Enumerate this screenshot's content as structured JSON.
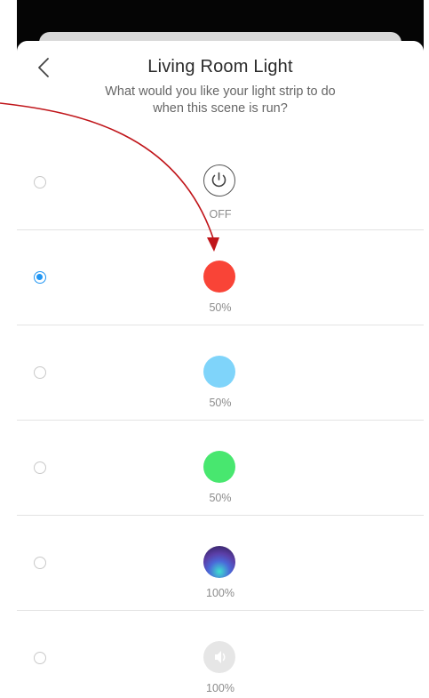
{
  "header": {
    "title": "Living Room Light",
    "subtitle": "What would you like your light strip to do when this scene is run?",
    "back_icon": "chevron-left-icon"
  },
  "options": [
    {
      "label": "OFF",
      "icon": "power-icon",
      "selected": false
    },
    {
      "label": "50%",
      "color": "#f94437",
      "selected": true
    },
    {
      "label": "50%",
      "color": "#7fd4fa",
      "selected": false
    },
    {
      "label": "50%",
      "color": "#48e76f",
      "selected": false
    },
    {
      "label": "100%",
      "icon": "aurora-scene-icon",
      "selected": false
    },
    {
      "label": "100%",
      "icon": "speaker-scene-icon",
      "selected": false
    }
  ],
  "annotation": {
    "color": "#c0151a"
  },
  "colors": {
    "accent": "#2196f3"
  }
}
